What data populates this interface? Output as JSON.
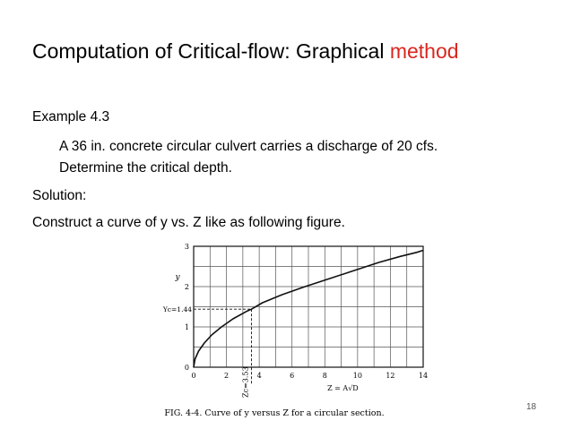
{
  "slide": {
    "title_main": "Computation of Critical-flow: Graphical ",
    "title_accent": "method",
    "accent_color": "#d9271e",
    "example_heading": "Example 4.3",
    "problem_line1": "A 36 in. concrete circular culvert carries a discharge of 20 cfs.",
    "problem_line2": "Determine the critical depth.",
    "solution_heading": "Solution:",
    "solution_text": "Construct a curve of y vs. Z like as following figure.",
    "page_number": "18"
  },
  "chart_data": {
    "type": "line",
    "title": "",
    "caption": "FIG. 4-4. Curve of y versus Z for a circular section.",
    "xlabel": "Z = A√D",
    "ylabel": "y",
    "xlim": [
      0,
      14
    ],
    "ylim": [
      0,
      3
    ],
    "x_ticks": [
      "0",
      "2",
      "4",
      "6",
      "8",
      "10",
      "12",
      "14"
    ],
    "y_ticks": [
      "0",
      "1",
      "2",
      "3"
    ],
    "grid": true,
    "annotations": {
      "yc_label": "Yc=1.44",
      "yc_value": 1.44,
      "zc_label": "Zc=3.53",
      "zc_value": 3.53
    },
    "series": [
      {
        "x": [
          0,
          0.08,
          0.3,
          0.65,
          1.1,
          1.7,
          2.4,
          3.2,
          3.53,
          4.2,
          5.4,
          6.8,
          8.3,
          9.8,
          11.3,
          12.6,
          13.6,
          14.0
        ],
        "y": [
          0,
          0.2,
          0.4,
          0.6,
          0.8,
          1.0,
          1.2,
          1.38,
          1.44,
          1.6,
          1.8,
          2.0,
          2.2,
          2.4,
          2.6,
          2.75,
          2.85,
          2.9
        ]
      }
    ]
  }
}
